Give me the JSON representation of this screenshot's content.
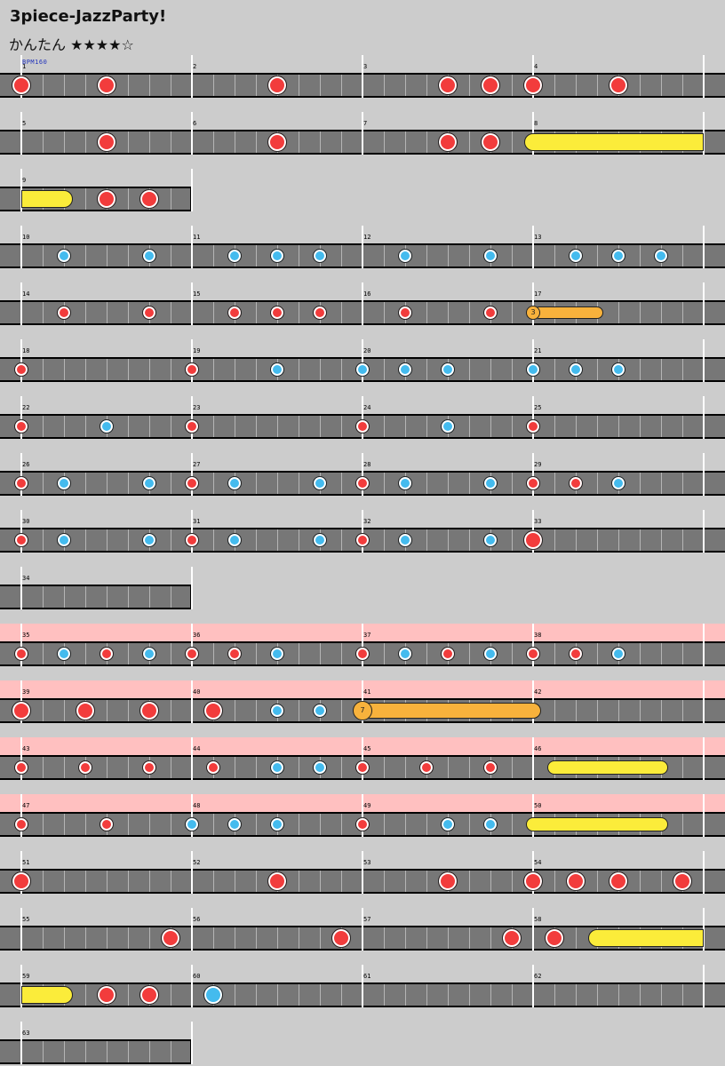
{
  "song_title": "3piece-JazzParty!",
  "difficulty": {
    "label": "かんたん",
    "stars": "★★★★☆"
  },
  "bpm_label": "BPM160",
  "colors": {
    "background": "#cccccc",
    "lane": "#777777",
    "gogo": "#ffc0c0",
    "don": "#f23c3c",
    "ka": "#44bbee",
    "roll": "#fbec3a",
    "balloon_roll": "#f8b23c"
  },
  "chart_rows": [
    {
      "measures": [
        1,
        2,
        3,
        4
      ],
      "notes": [
        {
          "measure": 1,
          "beat": 0,
          "type": "don-big"
        },
        {
          "measure": 1,
          "beat": 4,
          "type": "don-big"
        },
        {
          "measure": 2,
          "beat": 4,
          "type": "don-big"
        },
        {
          "measure": 3,
          "beat": 4,
          "type": "don-big"
        },
        {
          "measure": 3,
          "beat": 6,
          "type": "don-big"
        },
        {
          "measure": 4,
          "beat": 0,
          "type": "don-big"
        },
        {
          "measure": 4,
          "beat": 4,
          "type": "don-big"
        }
      ]
    },
    {
      "measures": [
        5,
        6,
        7,
        8
      ],
      "notes": [
        {
          "measure": 5,
          "beat": 4,
          "type": "don-big"
        },
        {
          "measure": 6,
          "beat": 4,
          "type": "don-big"
        },
        {
          "measure": 7,
          "beat": 4,
          "type": "don-big"
        },
        {
          "measure": 7,
          "beat": 6,
          "type": "don-big"
        }
      ],
      "rolls": [
        {
          "start_measure": 8,
          "start_beat": 0,
          "end_measure": 8,
          "end_beat": 8,
          "style": "yellow-big",
          "open_end": true
        }
      ]
    },
    {
      "measures": [
        9
      ],
      "notes": [
        {
          "measure": 9,
          "beat": 4,
          "type": "don-big"
        },
        {
          "measure": 9,
          "beat": 6,
          "type": "don-big"
        }
      ],
      "rolls": [
        {
          "start_measure": 9,
          "start_beat": 0,
          "end_measure": 9,
          "end_beat": 2,
          "style": "yellow-big",
          "open_start": true
        }
      ]
    },
    {
      "measures": [
        10,
        11,
        12,
        13
      ],
      "notes": [
        {
          "measure": 10,
          "beat": 2,
          "type": "ka"
        },
        {
          "measure": 10,
          "beat": 6,
          "type": "ka"
        },
        {
          "measure": 11,
          "beat": 2,
          "type": "ka"
        },
        {
          "measure": 11,
          "beat": 4,
          "type": "ka"
        },
        {
          "measure": 11,
          "beat": 6,
          "type": "ka"
        },
        {
          "measure": 12,
          "beat": 2,
          "type": "ka"
        },
        {
          "measure": 12,
          "beat": 6,
          "type": "ka"
        },
        {
          "measure": 13,
          "beat": 2,
          "type": "ka"
        },
        {
          "measure": 13,
          "beat": 4,
          "type": "ka"
        },
        {
          "measure": 13,
          "beat": 6,
          "type": "ka"
        }
      ]
    },
    {
      "measures": [
        14,
        15,
        16,
        17
      ],
      "notes": [
        {
          "measure": 14,
          "beat": 2,
          "type": "don"
        },
        {
          "measure": 14,
          "beat": 6,
          "type": "don"
        },
        {
          "measure": 15,
          "beat": 2,
          "type": "don"
        },
        {
          "measure": 15,
          "beat": 4,
          "type": "don"
        },
        {
          "measure": 15,
          "beat": 6,
          "type": "don"
        },
        {
          "measure": 16,
          "beat": 2,
          "type": "don"
        },
        {
          "measure": 16,
          "beat": 6,
          "type": "don"
        }
      ],
      "balloons": [
        {
          "measure": 17,
          "beat": 0,
          "end_measure": 17,
          "end_beat": 3,
          "count": "3"
        }
      ]
    },
    {
      "measures": [
        18,
        19,
        20,
        21
      ],
      "notes": [
        {
          "measure": 18,
          "beat": 0,
          "type": "don"
        },
        {
          "measure": 19,
          "beat": 0,
          "type": "don"
        },
        {
          "measure": 19,
          "beat": 4,
          "type": "ka"
        },
        {
          "measure": 20,
          "beat": 0,
          "type": "ka"
        },
        {
          "measure": 20,
          "beat": 2,
          "type": "ka"
        },
        {
          "measure": 20,
          "beat": 4,
          "type": "ka"
        },
        {
          "measure": 21,
          "beat": 0,
          "type": "ka"
        },
        {
          "measure": 21,
          "beat": 2,
          "type": "ka"
        },
        {
          "measure": 21,
          "beat": 4,
          "type": "ka"
        }
      ]
    },
    {
      "measures": [
        22,
        23,
        24,
        25
      ],
      "notes": [
        {
          "measure": 22,
          "beat": 0,
          "type": "don"
        },
        {
          "measure": 22,
          "beat": 4,
          "type": "ka"
        },
        {
          "measure": 23,
          "beat": 0,
          "type": "don"
        },
        {
          "measure": 24,
          "beat": 0,
          "type": "don"
        },
        {
          "measure": 24,
          "beat": 4,
          "type": "ka"
        },
        {
          "measure": 25,
          "beat": 0,
          "type": "don"
        }
      ]
    },
    {
      "measures": [
        26,
        27,
        28,
        29
      ],
      "notes": [
        {
          "measure": 26,
          "beat": 0,
          "type": "don"
        },
        {
          "measure": 26,
          "beat": 2,
          "type": "ka"
        },
        {
          "measure": 26,
          "beat": 6,
          "type": "ka"
        },
        {
          "measure": 27,
          "beat": 0,
          "type": "don"
        },
        {
          "measure": 27,
          "beat": 2,
          "type": "ka"
        },
        {
          "measure": 27,
          "beat": 6,
          "type": "ka"
        },
        {
          "measure": 28,
          "beat": 0,
          "type": "don"
        },
        {
          "measure": 28,
          "beat": 2,
          "type": "ka"
        },
        {
          "measure": 28,
          "beat": 6,
          "type": "ka"
        },
        {
          "measure": 29,
          "beat": 0,
          "type": "don"
        },
        {
          "measure": 29,
          "beat": 2,
          "type": "don"
        },
        {
          "measure": 29,
          "beat": 4,
          "type": "ka"
        }
      ]
    },
    {
      "measures": [
        30,
        31,
        32,
        33
      ],
      "notes": [
        {
          "measure": 30,
          "beat": 0,
          "type": "don"
        },
        {
          "measure": 30,
          "beat": 2,
          "type": "ka"
        },
        {
          "measure": 30,
          "beat": 6,
          "type": "ka"
        },
        {
          "measure": 31,
          "beat": 0,
          "type": "don"
        },
        {
          "measure": 31,
          "beat": 2,
          "type": "ka"
        },
        {
          "measure": 31,
          "beat": 6,
          "type": "ka"
        },
        {
          "measure": 32,
          "beat": 0,
          "type": "don"
        },
        {
          "measure": 32,
          "beat": 2,
          "type": "ka"
        },
        {
          "measure": 32,
          "beat": 6,
          "type": "ka"
        },
        {
          "measure": 33,
          "beat": 0,
          "type": "don-big"
        }
      ]
    },
    {
      "measures": [
        34
      ],
      "notes": []
    },
    {
      "measures": [
        35,
        36,
        37,
        38
      ],
      "gogo": true,
      "notes": [
        {
          "measure": 35,
          "beat": 0,
          "type": "don"
        },
        {
          "measure": 35,
          "beat": 2,
          "type": "ka"
        },
        {
          "measure": 35,
          "beat": 4,
          "type": "don"
        },
        {
          "measure": 35,
          "beat": 6,
          "type": "ka"
        },
        {
          "measure": 36,
          "beat": 0,
          "type": "don"
        },
        {
          "measure": 36,
          "beat": 2,
          "type": "don"
        },
        {
          "measure": 36,
          "beat": 4,
          "type": "ka"
        },
        {
          "measure": 37,
          "beat": 0,
          "type": "don"
        },
        {
          "measure": 37,
          "beat": 2,
          "type": "ka"
        },
        {
          "measure": 37,
          "beat": 4,
          "type": "don"
        },
        {
          "measure": 37,
          "beat": 6,
          "type": "ka"
        },
        {
          "measure": 38,
          "beat": 0,
          "type": "don"
        },
        {
          "measure": 38,
          "beat": 2,
          "type": "don"
        },
        {
          "measure": 38,
          "beat": 4,
          "type": "ka"
        }
      ]
    },
    {
      "measures": [
        39,
        40,
        41,
        42
      ],
      "gogo": true,
      "notes": [
        {
          "measure": 39,
          "beat": 0,
          "type": "don-big"
        },
        {
          "measure": 39,
          "beat": 3,
          "type": "don-big"
        },
        {
          "measure": 39,
          "beat": 6,
          "type": "don-big"
        },
        {
          "measure": 40,
          "beat": 1,
          "type": "don-big"
        },
        {
          "measure": 40,
          "beat": 4,
          "type": "ka"
        },
        {
          "measure": 40,
          "beat": 6,
          "type": "ka"
        }
      ],
      "balloons": [
        {
          "measure": 41,
          "beat": 0,
          "end_measure": 42,
          "end_beat": 0,
          "count": "7",
          "big": true
        }
      ]
    },
    {
      "measures": [
        43,
        44,
        45,
        46
      ],
      "gogo": true,
      "notes": [
        {
          "measure": 43,
          "beat": 0,
          "type": "don"
        },
        {
          "measure": 43,
          "beat": 3,
          "type": "don"
        },
        {
          "measure": 43,
          "beat": 6,
          "type": "don"
        },
        {
          "measure": 44,
          "beat": 1,
          "type": "don"
        },
        {
          "measure": 44,
          "beat": 4,
          "type": "ka"
        },
        {
          "measure": 44,
          "beat": 6,
          "type": "ka"
        },
        {
          "measure": 45,
          "beat": 0,
          "type": "don"
        },
        {
          "measure": 45,
          "beat": 3,
          "type": "don"
        },
        {
          "measure": 45,
          "beat": 6,
          "type": "don"
        }
      ],
      "rolls": [
        {
          "start_measure": 46,
          "start_beat": 1,
          "end_measure": 46,
          "end_beat": 6,
          "style": "yellow"
        }
      ]
    },
    {
      "measures": [
        47,
        48,
        49,
        50
      ],
      "gogo": true,
      "notes": [
        {
          "measure": 47,
          "beat": 0,
          "type": "don"
        },
        {
          "measure": 47,
          "beat": 4,
          "type": "don"
        },
        {
          "measure": 48,
          "beat": 0,
          "type": "ka"
        },
        {
          "measure": 48,
          "beat": 2,
          "type": "ka"
        },
        {
          "measure": 48,
          "beat": 4,
          "type": "ka"
        },
        {
          "measure": 49,
          "beat": 0,
          "type": "don"
        },
        {
          "measure": 49,
          "beat": 4,
          "type": "ka"
        },
        {
          "measure": 49,
          "beat": 6,
          "type": "ka"
        }
      ],
      "rolls": [
        {
          "start_measure": 50,
          "start_beat": 0,
          "end_measure": 50,
          "end_beat": 6,
          "style": "yellow"
        }
      ]
    },
    {
      "measures": [
        51,
        52,
        53,
        54
      ],
      "notes": [
        {
          "measure": 51,
          "beat": 0,
          "type": "don-big"
        },
        {
          "measure": 52,
          "beat": 4,
          "type": "don-big"
        },
        {
          "measure": 53,
          "beat": 4,
          "type": "don-big"
        },
        {
          "measure": 54,
          "beat": 0,
          "type": "don-big"
        },
        {
          "measure": 54,
          "beat": 2,
          "type": "don-big"
        },
        {
          "measure": 54,
          "beat": 4,
          "type": "don-big"
        },
        {
          "measure": 54,
          "beat": 7,
          "type": "don-big"
        }
      ]
    },
    {
      "measures": [
        55,
        56,
        57,
        58
      ],
      "notes": [
        {
          "measure": 55,
          "beat": 7,
          "type": "don-big"
        },
        {
          "measure": 56,
          "beat": 7,
          "type": "don-big"
        },
        {
          "measure": 57,
          "beat": 7,
          "type": "don-big"
        },
        {
          "measure": 58,
          "beat": 1,
          "type": "don-big"
        }
      ],
      "rolls": [
        {
          "start_measure": 58,
          "start_beat": 3,
          "end_measure": 58,
          "end_beat": 8,
          "style": "yellow-big",
          "open_end": true
        }
      ]
    },
    {
      "measures": [
        59,
        60,
        61,
        62
      ],
      "notes": [
        {
          "measure": 59,
          "beat": 4,
          "type": "don-big"
        },
        {
          "measure": 59,
          "beat": 6,
          "type": "don-big"
        },
        {
          "measure": 60,
          "beat": 1,
          "type": "ka-big"
        }
      ],
      "rolls": [
        {
          "start_measure": 59,
          "start_beat": 0,
          "end_measure": 59,
          "end_beat": 2,
          "style": "yellow-big",
          "open_start": true
        }
      ]
    },
    {
      "measures": [
        63
      ],
      "notes": []
    }
  ]
}
